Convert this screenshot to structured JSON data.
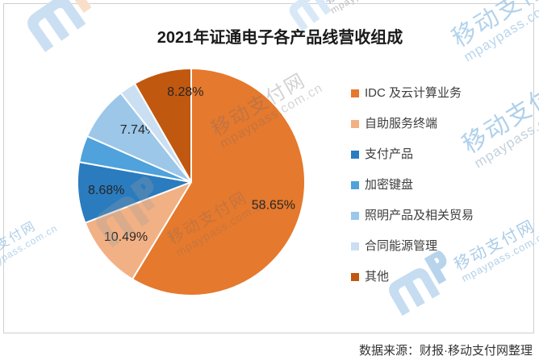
{
  "title": "2021年证通电子各产品线营收组成",
  "footer": {
    "source_label": "数据来源：财报·移动支付网整理"
  },
  "watermark": {
    "brand_cn": "移动支付网",
    "brand_en": "mpaypass.com.cn"
  },
  "chart_data": {
    "type": "pie",
    "title": "2021年证通电子各产品线营收组成",
    "legend_position": "right",
    "start_angle_deg": 0,
    "direction": "clockwise",
    "slices": [
      {
        "label": "IDC 及云计算业务",
        "value": 58.65,
        "display_label": "58.65%",
        "color": "#E5792D"
      },
      {
        "label": "自助服务终端",
        "value": 10.49,
        "display_label": "10.49%",
        "color": "#F2B184"
      },
      {
        "label": "支付产品",
        "value": 8.68,
        "display_label": "8.68%",
        "color": "#2A7CBF"
      },
      {
        "label": "加密键盘",
        "value": 3.8,
        "display_label": "",
        "color": "#4FA2DB",
        "estimated": true
      },
      {
        "label": "照明产品及相关贸易",
        "value": 7.74,
        "display_label": "7.74%",
        "color": "#9CC7E9"
      },
      {
        "label": "合同能源管理",
        "value": 2.36,
        "display_label": "",
        "color": "#CADFF2",
        "estimated": true
      },
      {
        "label": "其他",
        "value": 8.28,
        "display_label": "8.28%",
        "color": "#C1580F"
      }
    ]
  }
}
